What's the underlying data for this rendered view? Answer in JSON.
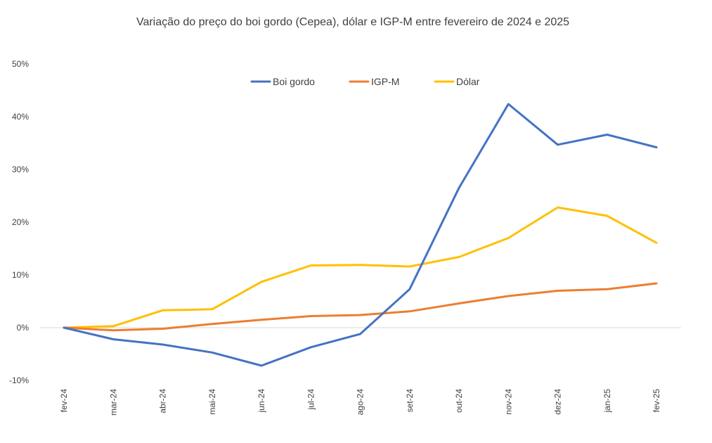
{
  "chart_data": {
    "type": "line",
    "title": "Variação do preço do boi gordo (Cepea), dólar e IGP-M entre fevereiro de 2024 e 2025",
    "categories": [
      "fev-24",
      "mar-24",
      "abr-24",
      "mai-24",
      "jun-24",
      "jul-24",
      "ago-24",
      "set-24",
      "out-24",
      "nov-24",
      "dez-24",
      "jan-25",
      "fev-25"
    ],
    "ylim": [
      -10,
      50
    ],
    "yticks": [
      -10,
      0,
      10,
      20,
      30,
      40,
      50
    ],
    "ytick_labels": [
      "-10%",
      "0%",
      "10%",
      "20%",
      "30%",
      "40%",
      "50%"
    ],
    "xlabel": "",
    "ylabel": "",
    "legend_position": "top",
    "series": [
      {
        "name": "Boi gordo",
        "color": "#4472C4",
        "values": [
          0,
          -2.2,
          -3.2,
          -4.7,
          -7.2,
          -3.7,
          -1.2,
          7.3,
          26.5,
          42.4,
          34.7,
          36.6,
          34.2
        ]
      },
      {
        "name": "IGP-M",
        "color": "#ED7D31",
        "values": [
          0,
          -0.5,
          -0.2,
          0.7,
          1.5,
          2.2,
          2.4,
          3.1,
          4.6,
          6.0,
          7.0,
          7.3,
          8.4
        ]
      },
      {
        "name": "Dólar",
        "color": "#FFC000",
        "values": [
          0,
          0.3,
          3.3,
          3.5,
          8.7,
          11.8,
          11.9,
          11.6,
          13.4,
          17.0,
          22.8,
          21.2,
          16.1
        ]
      }
    ]
  }
}
